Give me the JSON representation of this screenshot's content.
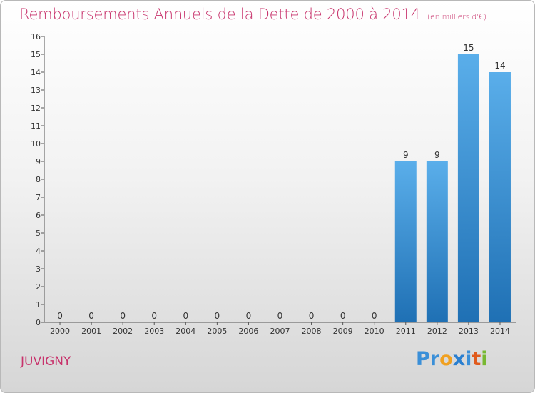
{
  "page": {
    "title": "Remboursements Annuels de la Dette de 2000 à 2014",
    "unit_note": "(en milliers d'€)",
    "town": "JUVIGNY",
    "logo": {
      "text": "Proxiti",
      "letters": [
        {
          "ch": "P",
          "color": "#3a8fd8"
        },
        {
          "ch": "r",
          "color": "#3a8fd8"
        },
        {
          "ch": "o",
          "color": "#f0a020"
        },
        {
          "ch": "x",
          "color": "#2a7fd0"
        },
        {
          "ch": "i",
          "color": "#3a8fd8"
        },
        {
          "ch": "t",
          "color": "#e05a1c"
        },
        {
          "ch": "i",
          "color": "#78b832"
        }
      ]
    }
  },
  "colors": {
    "title": "#c8336c",
    "bar_top": "#5aaeea",
    "bar_bottom": "#1f70b4",
    "axis": "#555555"
  },
  "chart_data": {
    "type": "bar",
    "title": "Remboursements Annuels de la Dette de 2000 à 2014",
    "subtitle": "(en milliers d'€)",
    "categories": [
      "2000",
      "2001",
      "2002",
      "2003",
      "2004",
      "2005",
      "2006",
      "2007",
      "2008",
      "2009",
      "2010",
      "2011",
      "2012",
      "2013",
      "2014"
    ],
    "values": [
      0,
      0,
      0,
      0,
      0,
      0,
      0,
      0,
      0,
      0,
      0,
      9,
      9,
      15,
      14
    ],
    "ylim": [
      0,
      16
    ],
    "y_ticks": [
      "0",
      "1",
      "2",
      "3",
      "4",
      "5",
      "6",
      "7",
      "8",
      "9",
      "10",
      "11",
      "12",
      "13",
      "14",
      "15",
      "16"
    ],
    "grid": false,
    "data_labels": true
  }
}
